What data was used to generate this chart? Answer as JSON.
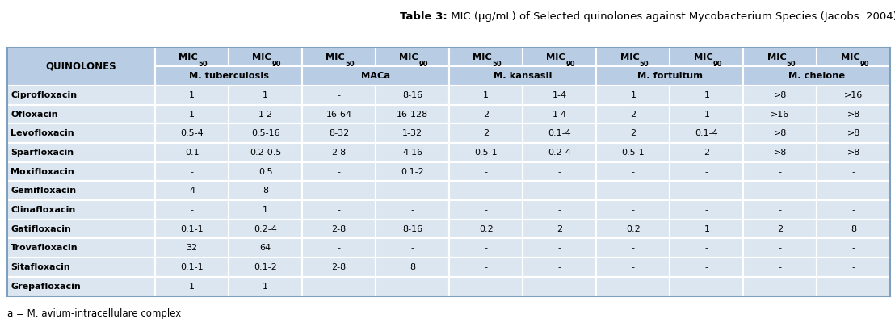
{
  "title_bold": "Table 3:",
  "title_regular": " MIC (μg/mL) of Selected quinolones against Mycobacterium Species (Jacobs. 2004).",
  "footnote": "a = M. avium-intracellulare complex",
  "species_spans": [
    [
      1,
      3,
      "M. tuberculosis"
    ],
    [
      3,
      5,
      "MACa"
    ],
    [
      5,
      7,
      "M. kansasii"
    ],
    [
      7,
      9,
      "M. fortuitum"
    ],
    [
      9,
      11,
      "M. chelone"
    ]
  ],
  "mic_subs": [
    "50",
    "90",
    "50",
    "90",
    "50",
    "90",
    "50",
    "90",
    "50",
    "90"
  ],
  "rows": [
    [
      "Ciprofloxacin",
      "1",
      "1",
      "-",
      "8-16",
      "1",
      "1-4",
      "1",
      "1",
      ">8",
      ">16"
    ],
    [
      "Ofloxacin",
      "1",
      "1-2",
      "16-64",
      "16-128",
      "2",
      "1-4",
      "2",
      "1",
      ">16",
      ">8"
    ],
    [
      "Levofloxacin",
      "0.5-4",
      "0.5-16",
      "8-32",
      "1-32",
      "2",
      "0.1-4",
      "2",
      "0.1-4",
      ">8",
      ">8"
    ],
    [
      "Sparfloxacin",
      "0.1",
      "0.2-0.5",
      "2-8",
      "4-16",
      "0.5-1",
      "0.2-4",
      "0.5-1",
      "2",
      ">8",
      ">8"
    ],
    [
      "Moxifloxacin",
      "-",
      "0.5",
      "-",
      "0.1-2",
      "-",
      "-",
      "-",
      "-",
      "-",
      "-"
    ],
    [
      "Gemifloxacin",
      "4",
      "8",
      "-",
      "-",
      "-",
      "-",
      "-",
      "-",
      "-",
      "-"
    ],
    [
      "Clinafloxacin",
      "-",
      "1",
      "-",
      "-",
      "-",
      "-",
      "-",
      "-",
      "-",
      "-"
    ],
    [
      "Gatifloxacin",
      "0.1-1",
      "0.2-4",
      "2-8",
      "8-16",
      "0.2",
      "2",
      "0.2",
      "1",
      "2",
      "8"
    ],
    [
      "Trovafloxacin",
      "32",
      "64",
      "-",
      "-",
      "-",
      "-",
      "-",
      "-",
      "-",
      "-"
    ],
    [
      "Sitafloxacin",
      "0.1-1",
      "0.1-2",
      "2-8",
      "8",
      "-",
      "-",
      "-",
      "-",
      "-",
      "-"
    ],
    [
      "Grepafloxacin",
      "1",
      "1",
      "-",
      "-",
      "-",
      "-",
      "-",
      "-",
      "-",
      "-"
    ]
  ],
  "header_bg": "#b8cce4",
  "data_bg": "#dce6f1",
  "border_color": "#ffffff",
  "col_widths": [
    1.55,
    0.77,
    0.77,
    0.77,
    0.77,
    0.77,
    0.77,
    0.77,
    0.77,
    0.77,
    0.77
  ]
}
